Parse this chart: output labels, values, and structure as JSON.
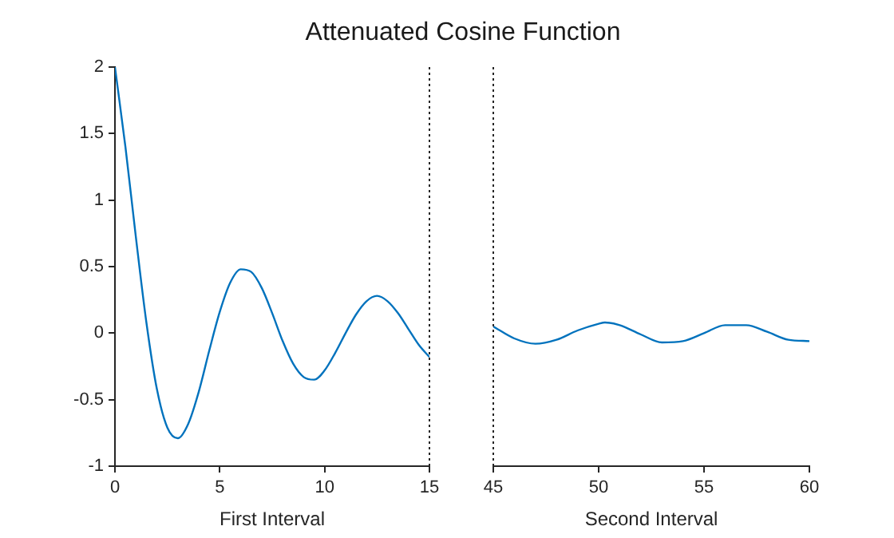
{
  "chart_data": [
    {
      "type": "line",
      "title": "Attenuated Cosine Function",
      "xlabel": "First Interval",
      "x": [
        0,
        0.5,
        1,
        1.5,
        2,
        2.5,
        3,
        3.5,
        4,
        4.5,
        5,
        5.5,
        6,
        6.5,
        7,
        7.5,
        8,
        8.5,
        9,
        9.5,
        10,
        10.5,
        11,
        11.5,
        12,
        12.5,
        13,
        13.5,
        14,
        14.5,
        15
      ],
      "series": [
        {
          "color": "#0072bd",
          "values": [
            2,
            1.4,
            0.72,
            0.08,
            -0.42,
            -0.71,
            -0.79,
            -0.68,
            -0.44,
            -0.13,
            0.16,
            0.38,
            0.48,
            0.46,
            0.34,
            0.15,
            -0.06,
            -0.23,
            -0.33,
            -0.35,
            -0.28,
            -0.15,
            0,
            0.14,
            0.24,
            0.28,
            0.24,
            0.15,
            0.03,
            -0.09,
            -0.18
          ]
        }
      ],
      "xlim": [
        0,
        15
      ],
      "xticks": [
        0,
        5,
        10,
        15
      ],
      "ylim": [
        -1,
        2
      ],
      "yticks": [
        -1,
        -0.5,
        0,
        0.5,
        1,
        1.5,
        2
      ],
      "grid": false,
      "ref_lines": [
        {
          "axis": "x",
          "value": 15,
          "line_style": "dotted",
          "color": "#262626"
        }
      ]
    },
    {
      "type": "line",
      "xlabel": "Second Interval",
      "x": [
        45,
        46,
        47,
        48,
        49,
        50,
        50.3,
        51,
        52,
        53,
        54,
        55,
        56,
        57,
        58,
        59,
        60
      ],
      "series": [
        {
          "color": "#0072bd",
          "values": [
            0.05,
            -0.04,
            -0.08,
            -0.05,
            0.02,
            0.07,
            0.08,
            0.06,
            -0.01,
            -0.07,
            -0.06,
            0,
            0.06,
            0.06,
            0.01,
            -0.05,
            -0.06
          ]
        }
      ],
      "xlim": [
        45,
        60
      ],
      "xticks": [
        45,
        50,
        55,
        60
      ],
      "ylim": [
        -1,
        2
      ],
      "yticks": [
        -1,
        -0.5,
        0,
        0.5,
        1,
        1.5,
        2
      ],
      "grid": false,
      "tick_labels": "x",
      "ref_lines": [
        {
          "axis": "x",
          "value": 45,
          "line_style": "dotted",
          "color": "#262626"
        }
      ]
    }
  ]
}
